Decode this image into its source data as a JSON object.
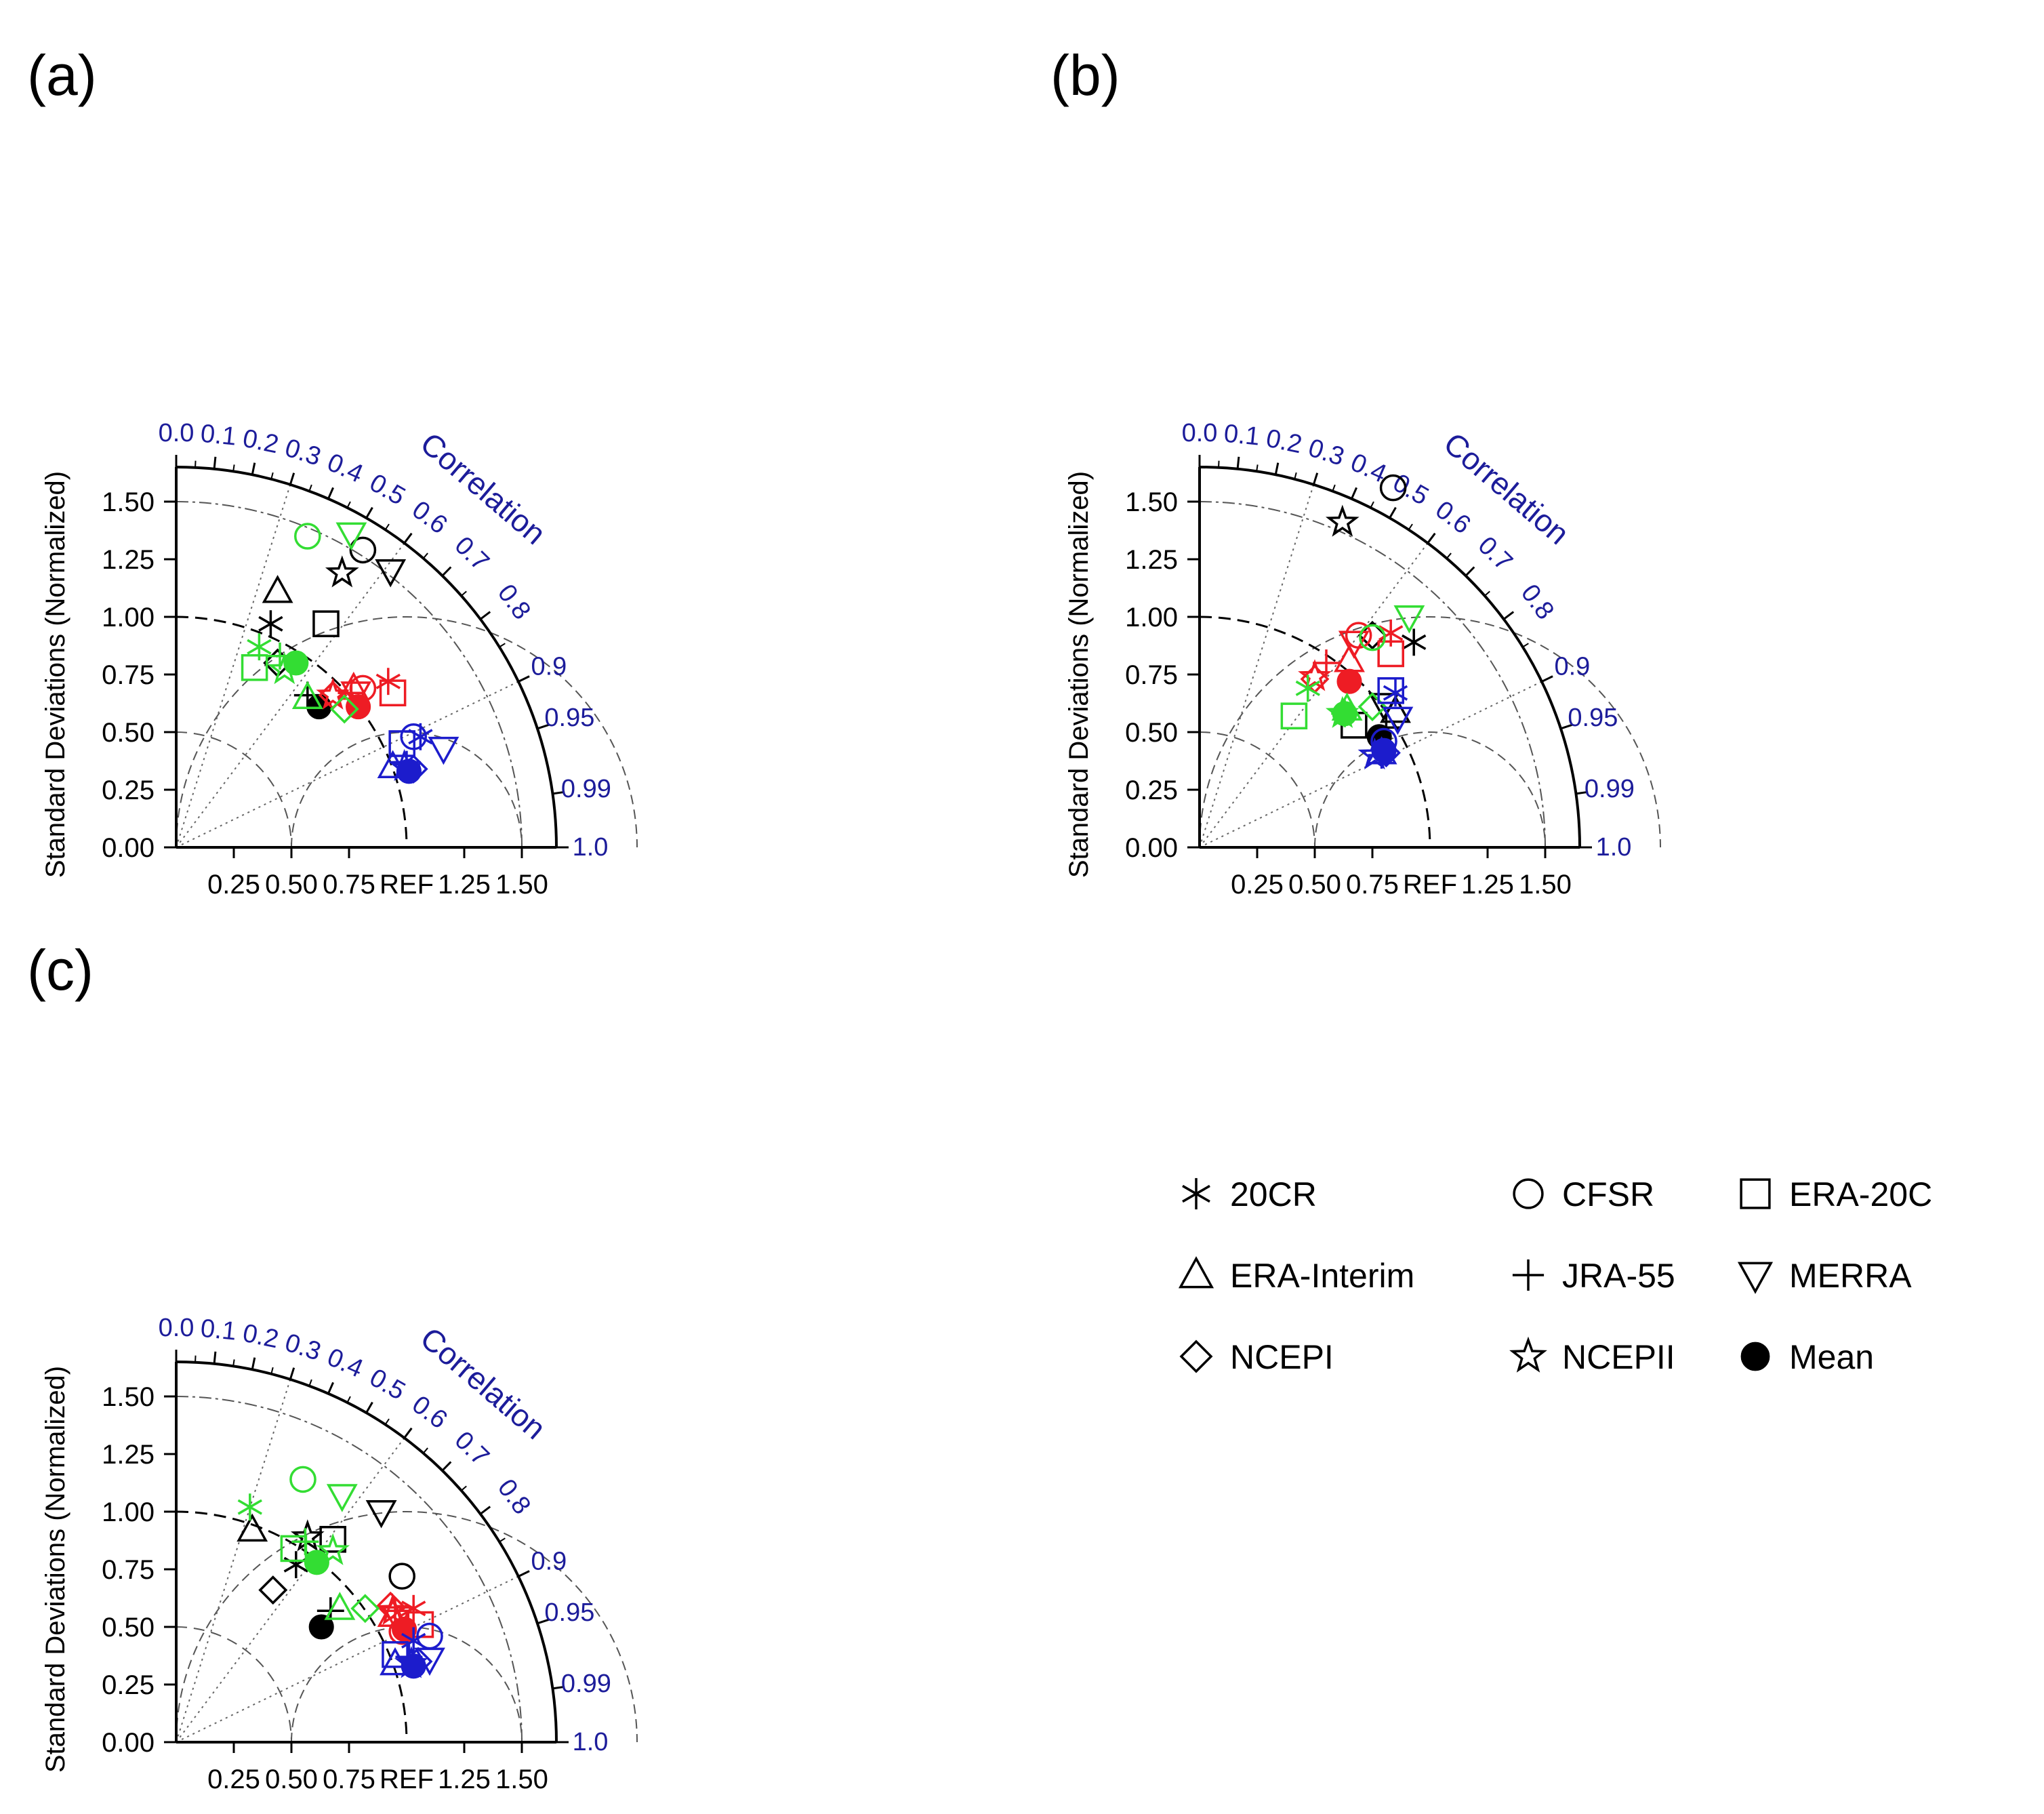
{
  "colors": {
    "black": "#000000",
    "red": "#ee1c24",
    "green": "#33dd33",
    "blue": "#1c1ccc",
    "axis_blue": "#1c1c9a"
  },
  "figure": {
    "ylabel": "Standard Deviations (Normalized)",
    "correlation_label": "Correlation",
    "ref_label": "REF",
    "x_tick_labels": [
      "0.25",
      "0.50",
      "0.75",
      "1.25",
      "1.50"
    ],
    "y_tick_labels": [
      "0.00",
      "0.25",
      "0.50",
      "0.75",
      "1.00",
      "1.25",
      "1.50"
    ],
    "corr_tick_labels": [
      "0.0",
      "0.1",
      "0.2",
      "0.3",
      "0.4",
      "0.5",
      "0.6",
      "0.7",
      "0.8",
      "0.9",
      "0.95",
      "0.99",
      "1.0"
    ]
  },
  "legend": [
    {
      "name": "20CR",
      "marker": "asterisk-icon"
    },
    {
      "name": "CFSR",
      "marker": "circle-icon"
    },
    {
      "name": "ERA-20C",
      "marker": "square-icon"
    },
    {
      "name": "ERA-Interim",
      "marker": "triangle-up-icon"
    },
    {
      "name": "JRA-55",
      "marker": "plus-icon"
    },
    {
      "name": "MERRA",
      "marker": "triangle-down-icon"
    },
    {
      "name": "NCEPI",
      "marker": "diamond-icon"
    },
    {
      "name": "NCEPII",
      "marker": "star-icon"
    },
    {
      "name": "Mean",
      "marker": "filled-circle-icon"
    }
  ],
  "chart_data": [
    {
      "type": "scatter",
      "label": "(a)",
      "diagram": "taylor",
      "xlabel": "",
      "ylabel": "Standard Deviations (Normalized)",
      "xlim": [
        0,
        1.65
      ],
      "ylim": [
        0,
        1.65
      ],
      "correlation_ticks": [
        0.0,
        0.1,
        0.2,
        0.3,
        0.4,
        0.5,
        0.6,
        0.7,
        0.8,
        0.9,
        0.95,
        0.99,
        1.0
      ],
      "reference_std": 1.0,
      "points": [
        {
          "dataset": "20CR",
          "color": "black",
          "x": 0.41,
          "y": 0.97
        },
        {
          "dataset": "CFSR",
          "color": "black",
          "x": 0.81,
          "y": 1.29
        },
        {
          "dataset": "ERA-20C",
          "color": "black",
          "x": 0.65,
          "y": 0.97
        },
        {
          "dataset": "ERA-Interim",
          "color": "black",
          "x": 0.44,
          "y": 1.11
        },
        {
          "dataset": "JRA-55",
          "color": "black",
          "x": 0.57,
          "y": 0.66
        },
        {
          "dataset": "MERRA",
          "color": "black",
          "x": 0.93,
          "y": 1.2
        },
        {
          "dataset": "NCEPI",
          "color": "black",
          "x": 0.44,
          "y": 0.8
        },
        {
          "dataset": "NCEPII",
          "color": "black",
          "x": 0.72,
          "y": 1.19
        },
        {
          "dataset": "Mean",
          "color": "black",
          "x": 0.62,
          "y": 0.61
        },
        {
          "dataset": "20CR",
          "color": "red",
          "x": 0.92,
          "y": 0.72
        },
        {
          "dataset": "CFSR",
          "color": "red",
          "x": 0.81,
          "y": 0.69
        },
        {
          "dataset": "ERA-20C",
          "color": "red",
          "x": 0.94,
          "y": 0.67
        },
        {
          "dataset": "ERA-Interim",
          "color": "red",
          "x": 0.77,
          "y": 0.69
        },
        {
          "dataset": "JRA-55",
          "color": "red",
          "x": 0.76,
          "y": 0.67
        },
        {
          "dataset": "MERRA",
          "color": "red",
          "x": 0.78,
          "y": 0.67
        },
        {
          "dataset": "NCEPI",
          "color": "red",
          "x": 0.68,
          "y": 0.66
        },
        {
          "dataset": "NCEPII",
          "color": "red",
          "x": 0.68,
          "y": 0.66
        },
        {
          "dataset": "Mean",
          "color": "red",
          "x": 0.79,
          "y": 0.61
        },
        {
          "dataset": "20CR",
          "color": "green",
          "x": 0.36,
          "y": 0.87
        },
        {
          "dataset": "CFSR",
          "color": "green",
          "x": 0.57,
          "y": 1.35
        },
        {
          "dataset": "ERA-20C",
          "color": "green",
          "x": 0.34,
          "y": 0.78
        },
        {
          "dataset": "ERA-Interim",
          "color": "green",
          "x": 0.57,
          "y": 0.65
        },
        {
          "dataset": "JRA-55",
          "color": "green",
          "x": 0.45,
          "y": 0.83
        },
        {
          "dataset": "MERRA",
          "color": "green",
          "x": 0.76,
          "y": 1.36
        },
        {
          "dataset": "NCEPI",
          "color": "green",
          "x": 0.73,
          "y": 0.6
        },
        {
          "dataset": "NCEPII",
          "color": "green",
          "x": 0.47,
          "y": 0.77
        },
        {
          "dataset": "Mean",
          "color": "green",
          "x": 0.52,
          "y": 0.8
        },
        {
          "dataset": "20CR",
          "color": "blue",
          "x": 1.06,
          "y": 0.48
        },
        {
          "dataset": "CFSR",
          "color": "blue",
          "x": 1.03,
          "y": 0.48
        },
        {
          "dataset": "ERA-20C",
          "color": "blue",
          "x": 0.98,
          "y": 0.45
        },
        {
          "dataset": "ERA-Interim",
          "color": "blue",
          "x": 0.94,
          "y": 0.35
        },
        {
          "dataset": "JRA-55",
          "color": "blue",
          "x": 1.0,
          "y": 0.36
        },
        {
          "dataset": "MERRA",
          "color": "blue",
          "x": 1.16,
          "y": 0.43
        },
        {
          "dataset": "NCEPI",
          "color": "blue",
          "x": 1.03,
          "y": 0.34
        },
        {
          "dataset": "NCEPII",
          "color": "blue",
          "x": 0.99,
          "y": 0.35
        },
        {
          "dataset": "Mean",
          "color": "blue",
          "x": 1.01,
          "y": 0.33
        }
      ]
    },
    {
      "type": "scatter",
      "label": "(b)",
      "diagram": "taylor",
      "xlabel": "",
      "ylabel": "Standard Deviations (Normalized)",
      "xlim": [
        0,
        1.65
      ],
      "ylim": [
        0,
        1.65
      ],
      "correlation_ticks": [
        0.0,
        0.1,
        0.2,
        0.3,
        0.4,
        0.5,
        0.6,
        0.7,
        0.8,
        0.9,
        0.95,
        0.99,
        1.0
      ],
      "reference_std": 1.0,
      "points": [
        {
          "dataset": "20CR",
          "color": "black",
          "x": 0.93,
          "y": 0.89
        },
        {
          "dataset": "CFSR",
          "color": "black",
          "x": 0.84,
          "y": 1.56
        },
        {
          "dataset": "ERA-20C",
          "color": "black",
          "x": 0.67,
          "y": 0.53
        },
        {
          "dataset": "ERA-Interim",
          "color": "black",
          "x": 0.85,
          "y": 0.59
        },
        {
          "dataset": "JRA-55",
          "color": "black",
          "x": 0.81,
          "y": 0.52
        },
        {
          "dataset": "MERRA",
          "color": "black",
          "x": 0.8,
          "y": 0.62
        },
        {
          "dataset": "NCEPI",
          "color": "black",
          "x": 0.75,
          "y": 0.92
        },
        {
          "dataset": "NCEPII",
          "color": "black",
          "x": 0.62,
          "y": 1.41
        },
        {
          "dataset": "Mean",
          "color": "black",
          "x": 0.78,
          "y": 0.48
        },
        {
          "dataset": "20CR",
          "color": "red",
          "x": 0.83,
          "y": 0.93
        },
        {
          "dataset": "CFSR",
          "color": "red",
          "x": 0.69,
          "y": 0.92
        },
        {
          "dataset": "ERA-20C",
          "color": "red",
          "x": 0.83,
          "y": 0.84
        },
        {
          "dataset": "ERA-Interim",
          "color": "red",
          "x": 0.65,
          "y": 0.81
        },
        {
          "dataset": "JRA-55",
          "color": "red",
          "x": 0.55,
          "y": 0.8
        },
        {
          "dataset": "MERRA",
          "color": "red",
          "x": 0.67,
          "y": 0.89
        },
        {
          "dataset": "NCEPI",
          "color": "red",
          "x": 0.5,
          "y": 0.73
        },
        {
          "dataset": "NCEPII",
          "color": "red",
          "x": 0.5,
          "y": 0.74
        },
        {
          "dataset": "Mean",
          "color": "red",
          "x": 0.65,
          "y": 0.72
        },
        {
          "dataset": "20CR",
          "color": "green",
          "x": 0.47,
          "y": 0.69
        },
        {
          "dataset": "CFSR",
          "color": "green",
          "x": 0.75,
          "y": 0.91
        },
        {
          "dataset": "ERA-20C",
          "color": "green",
          "x": 0.41,
          "y": 0.57
        },
        {
          "dataset": "ERA-Interim",
          "color": "green",
          "x": 0.64,
          "y": 0.6
        },
        {
          "dataset": "JRA-55",
          "color": "green",
          "x": 0.63,
          "y": 0.58
        },
        {
          "dataset": "MERRA",
          "color": "green",
          "x": 0.91,
          "y": 1.0
        },
        {
          "dataset": "NCEPI",
          "color": "green",
          "x": 0.75,
          "y": 0.61
        },
        {
          "dataset": "NCEPII",
          "color": "green",
          "x": 0.62,
          "y": 0.58
        },
        {
          "dataset": "Mean",
          "color": "green",
          "x": 0.63,
          "y": 0.58
        },
        {
          "dataset": "20CR",
          "color": "blue",
          "x": 0.85,
          "y": 0.67
        },
        {
          "dataset": "CFSR",
          "color": "blue",
          "x": 0.8,
          "y": 0.46
        },
        {
          "dataset": "ERA-20C",
          "color": "blue",
          "x": 0.83,
          "y": 0.68
        },
        {
          "dataset": "ERA-Interim",
          "color": "blue",
          "x": 0.79,
          "y": 0.41
        },
        {
          "dataset": "JRA-55",
          "color": "blue",
          "x": 0.79,
          "y": 0.4
        },
        {
          "dataset": "MERRA",
          "color": "blue",
          "x": 0.86,
          "y": 0.56
        },
        {
          "dataset": "NCEPI",
          "color": "blue",
          "x": 0.81,
          "y": 0.41
        },
        {
          "dataset": "NCEPII",
          "color": "blue",
          "x": 0.76,
          "y": 0.4
        },
        {
          "dataset": "Mean",
          "color": "blue",
          "x": 0.8,
          "y": 0.42
        }
      ]
    },
    {
      "type": "scatter",
      "label": "(c)",
      "diagram": "taylor",
      "xlabel": "",
      "ylabel": "Standard Deviations (Normalized)",
      "xlim": [
        0,
        1.65
      ],
      "ylim": [
        0,
        1.65
      ],
      "correlation_ticks": [
        0.0,
        0.1,
        0.2,
        0.3,
        0.4,
        0.5,
        0.6,
        0.7,
        0.8,
        0.9,
        0.95,
        0.99,
        1.0
      ],
      "reference_std": 1.0,
      "points": [
        {
          "dataset": "20CR",
          "color": "black",
          "x": 0.52,
          "y": 0.77
        },
        {
          "dataset": "CFSR",
          "color": "black",
          "x": 0.98,
          "y": 0.72
        },
        {
          "dataset": "ERA-20C",
          "color": "black",
          "x": 0.68,
          "y": 0.88
        },
        {
          "dataset": "ERA-Interim",
          "color": "black",
          "x": 0.33,
          "y": 0.92
        },
        {
          "dataset": "JRA-55",
          "color": "black",
          "x": 0.67,
          "y": 0.57
        },
        {
          "dataset": "MERRA",
          "color": "black",
          "x": 0.89,
          "y": 1.0
        },
        {
          "dataset": "NCEPI",
          "color": "black",
          "x": 0.42,
          "y": 0.66
        },
        {
          "dataset": "NCEPII",
          "color": "black",
          "x": 0.57,
          "y": 0.89
        },
        {
          "dataset": "Mean",
          "color": "black",
          "x": 0.63,
          "y": 0.5
        },
        {
          "dataset": "20CR",
          "color": "red",
          "x": 1.03,
          "y": 0.58
        },
        {
          "dataset": "CFSR",
          "color": "red",
          "x": 0.98,
          "y": 0.48
        },
        {
          "dataset": "ERA-20C",
          "color": "red",
          "x": 1.06,
          "y": 0.51
        },
        {
          "dataset": "ERA-Interim",
          "color": "red",
          "x": 0.94,
          "y": 0.55
        },
        {
          "dataset": "JRA-55",
          "color": "red",
          "x": 0.95,
          "y": 0.57
        },
        {
          "dataset": "MERRA",
          "color": "red",
          "x": 0.96,
          "y": 0.54
        },
        {
          "dataset": "NCEPI",
          "color": "red",
          "x": 0.93,
          "y": 0.59
        },
        {
          "dataset": "NCEPII",
          "color": "red",
          "x": 0.94,
          "y": 0.57
        },
        {
          "dataset": "Mean",
          "color": "red",
          "x": 0.99,
          "y": 0.49
        },
        {
          "dataset": "20CR",
          "color": "green",
          "x": 0.32,
          "y": 1.02
        },
        {
          "dataset": "CFSR",
          "color": "green",
          "x": 0.55,
          "y": 1.14
        },
        {
          "dataset": "ERA-20C",
          "color": "green",
          "x": 0.51,
          "y": 0.84
        },
        {
          "dataset": "ERA-Interim",
          "color": "green",
          "x": 0.71,
          "y": 0.58
        },
        {
          "dataset": "JRA-55",
          "color": "green",
          "x": 0.56,
          "y": 0.87
        },
        {
          "dataset": "MERRA",
          "color": "green",
          "x": 0.72,
          "y": 1.07
        },
        {
          "dataset": "NCEPI",
          "color": "green",
          "x": 0.82,
          "y": 0.58
        },
        {
          "dataset": "NCEPII",
          "color": "green",
          "x": 0.68,
          "y": 0.83
        },
        {
          "dataset": "Mean",
          "color": "green",
          "x": 0.61,
          "y": 0.78
        },
        {
          "dataset": "20CR",
          "color": "blue",
          "x": 1.03,
          "y": 0.44
        },
        {
          "dataset": "CFSR",
          "color": "blue",
          "x": 1.1,
          "y": 0.46
        },
        {
          "dataset": "ERA-20C",
          "color": "blue",
          "x": 0.95,
          "y": 0.38
        },
        {
          "dataset": "ERA-Interim",
          "color": "blue",
          "x": 0.95,
          "y": 0.34
        },
        {
          "dataset": "JRA-55",
          "color": "blue",
          "x": 1.01,
          "y": 0.37
        },
        {
          "dataset": "MERRA",
          "color": "blue",
          "x": 1.1,
          "y": 0.36
        },
        {
          "dataset": "NCEPI",
          "color": "blue",
          "x": 1.05,
          "y": 0.35
        },
        {
          "dataset": "NCEPII",
          "color": "blue",
          "x": 1.02,
          "y": 0.34
        },
        {
          "dataset": "Mean",
          "color": "blue",
          "x": 1.03,
          "y": 0.33
        }
      ]
    }
  ]
}
